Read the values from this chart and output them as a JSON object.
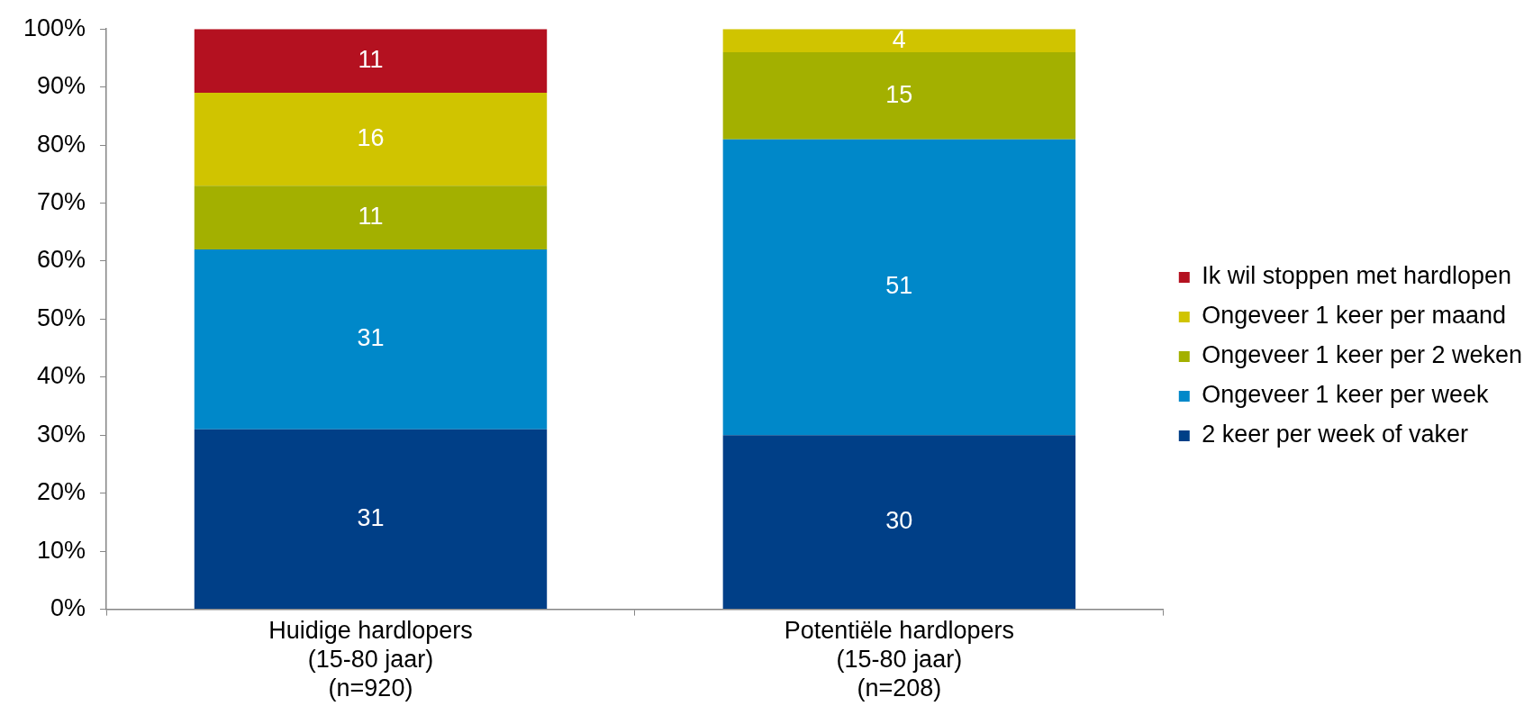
{
  "chart_data": {
    "type": "bar",
    "stacked": true,
    "categories": [
      "Huidige hardlopers\n(15-80 jaar)\n(n=920)",
      "Potentiële hardlopers\n(15-80 jaar)\n(n=208)"
    ],
    "series": [
      {
        "name": "2 keer per week of vaker",
        "color": "#003f87",
        "values": [
          31,
          30
        ]
      },
      {
        "name": "Ongeveer 1 keer per week",
        "color": "#0088c9",
        "values": [
          31,
          51
        ]
      },
      {
        "name": "Ongeveer 1 keer per 2 weken",
        "color": "#a3b000",
        "values": [
          11,
          15
        ]
      },
      {
        "name": "Ongeveer 1 keer per maand",
        "color": "#d0c400",
        "values": [
          16,
          4
        ]
      },
      {
        "name": "Ik wil stoppen met hardlopen",
        "color": "#b41120",
        "values": [
          11,
          null
        ]
      }
    ],
    "ylim": [
      0,
      100
    ],
    "yticks": [
      {
        "value": 0,
        "label": "0%"
      },
      {
        "value": 10,
        "label": "10%"
      },
      {
        "value": 20,
        "label": "20%"
      },
      {
        "value": 30,
        "label": "30%"
      },
      {
        "value": 40,
        "label": "40%"
      },
      {
        "value": 50,
        "label": "50%"
      },
      {
        "value": 60,
        "label": "60%"
      },
      {
        "value": 70,
        "label": "70%"
      },
      {
        "value": 80,
        "label": "80%"
      },
      {
        "value": 90,
        "label": "90%"
      },
      {
        "value": 100,
        "label": "100%"
      }
    ],
    "data_labels": true,
    "legend": "right"
  }
}
